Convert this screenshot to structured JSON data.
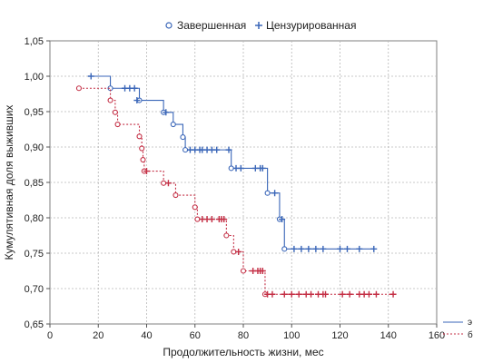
{
  "chart_data": {
    "type": "line",
    "title": "",
    "xlabel": "Продолжительность жизни, мес",
    "ylabel": "Кумулятивная доля выживших",
    "xlim": [
      0,
      160
    ],
    "ylim": [
      0.65,
      1.05
    ],
    "xticks": [
      0,
      20,
      40,
      60,
      80,
      100,
      120,
      140,
      160
    ],
    "yticks": [
      0.65,
      0.7,
      0.75,
      0.8,
      0.85,
      0.9,
      0.95,
      1.0,
      1.05
    ],
    "xtick_labels": [
      "0",
      "20",
      "40",
      "60",
      "80",
      "100",
      "120",
      "140",
      "160"
    ],
    "ytick_labels": [
      "0,65",
      "0,70",
      "0,75",
      "0,80",
      "0,85",
      "0,90",
      "0,95",
      "1,00",
      "1,05"
    ],
    "grid": true,
    "legend": {
      "placement": "top",
      "entries": [
        {
          "label": "Завершенная",
          "marker": "circle"
        },
        {
          "label": "Цензурированная",
          "marker": "plus"
        }
      ]
    },
    "series": [
      {
        "name": "э",
        "color": "#3a66b8",
        "line_style": "solid",
        "steps": [
          [
            17,
            1.0
          ],
          [
            25,
            0.983
          ],
          [
            37,
            0.966
          ],
          [
            47,
            0.949
          ],
          [
            48,
            0.949
          ],
          [
            51,
            0.932
          ],
          [
            55,
            0.914
          ],
          [
            56,
            0.896
          ],
          [
            75,
            0.87
          ],
          [
            90,
            0.835
          ],
          [
            93,
            0.835
          ],
          [
            95,
            0.798
          ],
          [
            97,
            0.756
          ],
          [
            134,
            0.756
          ]
        ],
        "events": [
          25,
          37,
          47,
          51,
          55,
          56,
          75,
          90,
          95,
          97
        ],
        "event_y": [
          0.983,
          0.966,
          0.949,
          0.932,
          0.914,
          0.896,
          0.87,
          0.835,
          0.798,
          0.756
        ],
        "censored_x": [
          17,
          31,
          33,
          35,
          36,
          48,
          58,
          60,
          62,
          63,
          65,
          67,
          69,
          74,
          77,
          79,
          85,
          87,
          88,
          93,
          96,
          101,
          104,
          107,
          110,
          113,
          120,
          123,
          128,
          134
        ],
        "censored_y": [
          1.0,
          0.983,
          0.983,
          0.983,
          0.966,
          0.949,
          0.896,
          0.896,
          0.896,
          0.896,
          0.896,
          0.896,
          0.896,
          0.896,
          0.87,
          0.87,
          0.87,
          0.87,
          0.87,
          0.835,
          0.798,
          0.756,
          0.756,
          0.756,
          0.756,
          0.756,
          0.756,
          0.756,
          0.756,
          0.756
        ]
      },
      {
        "name": "б",
        "color": "#c42f45",
        "line_style": "dotted",
        "steps": [
          [
            12,
            0.983
          ],
          [
            25,
            0.966
          ],
          [
            27,
            0.949
          ],
          [
            28,
            0.932
          ],
          [
            37,
            0.915
          ],
          [
            38,
            0.898
          ],
          [
            38.5,
            0.882
          ],
          [
            39,
            0.866
          ],
          [
            47,
            0.849
          ],
          [
            52,
            0.832
          ],
          [
            60,
            0.815
          ],
          [
            61,
            0.798
          ],
          [
            73,
            0.775
          ],
          [
            76,
            0.752
          ],
          [
            80,
            0.725
          ],
          [
            89,
            0.692
          ],
          [
            142,
            0.692
          ]
        ],
        "events": [
          12,
          25,
          27,
          28,
          37,
          38,
          38.5,
          39,
          47,
          52,
          60,
          61,
          73,
          76,
          80,
          89
        ],
        "event_y": [
          0.983,
          0.966,
          0.949,
          0.932,
          0.915,
          0.898,
          0.882,
          0.866,
          0.849,
          0.832,
          0.815,
          0.798,
          0.775,
          0.752,
          0.725,
          0.692
        ],
        "censored_x": [
          40,
          49,
          63,
          65,
          67,
          70,
          71,
          72,
          78,
          84,
          86,
          87,
          88,
          90,
          92,
          97,
          100,
          103,
          106,
          108,
          111,
          113,
          114,
          121,
          124,
          128,
          130,
          132,
          135,
          142
        ],
        "censored_y": [
          0.866,
          0.849,
          0.798,
          0.798,
          0.798,
          0.798,
          0.798,
          0.798,
          0.752,
          0.725,
          0.725,
          0.725,
          0.725,
          0.692,
          0.692,
          0.692,
          0.692,
          0.692,
          0.692,
          0.692,
          0.692,
          0.692,
          0.692,
          0.692,
          0.692,
          0.692,
          0.692,
          0.692,
          0.692,
          0.692
        ]
      }
    ]
  }
}
